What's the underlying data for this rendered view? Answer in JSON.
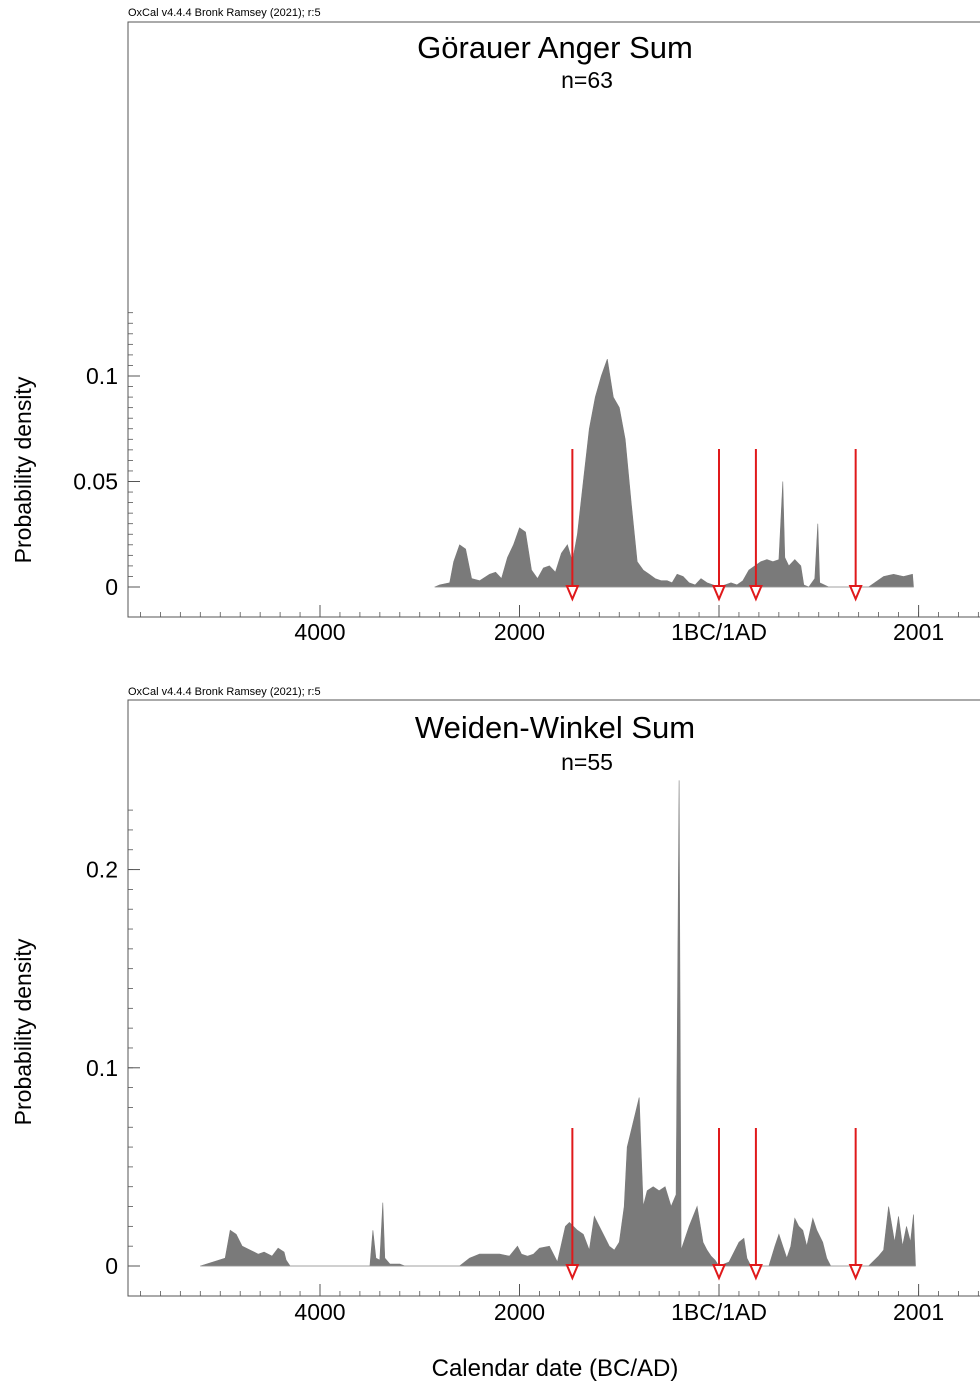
{
  "figure": {
    "xlabel": "Calendar date (BC/AD)",
    "colors": {
      "fill": "#7a7a7a",
      "marker": "#e0191b",
      "axis": "#555555",
      "text": "#000000"
    }
  },
  "chart_data": [
    {
      "type": "area",
      "credit": "OxCal v4.4.4 Bronk Ramsey (2021); r:5",
      "title": "Görauer Anger Sum",
      "subtitle": "n=63",
      "ylabel": "Probability density",
      "xlim": [
        -6000,
        2600
      ],
      "ylim": [
        0,
        0.2
      ],
      "x_ticks": [
        {
          "value": -4000,
          "label": "4000"
        },
        {
          "value": -2000,
          "label": "2000"
        },
        {
          "value": 0,
          "label": "1BC/1AD"
        },
        {
          "value": 2001,
          "label": "2001"
        }
      ],
      "y_ticks": [
        {
          "value": 0,
          "label": "0"
        },
        {
          "value": 0.05,
          "label": "0.05"
        },
        {
          "value": 0.1,
          "label": "0.1"
        }
      ],
      "markers": [
        -1470,
        0,
        370,
        1370
      ],
      "series": [
        {
          "points": [
            [
              -2850,
              0
            ],
            [
              -2800,
              0.001
            ],
            [
              -2700,
              0.002
            ],
            [
              -2660,
              0.012
            ],
            [
              -2600,
              0.02
            ],
            [
              -2540,
              0.018
            ],
            [
              -2480,
              0.004
            ],
            [
              -2400,
              0.003
            ],
            [
              -2300,
              0.006
            ],
            [
              -2240,
              0.007
            ],
            [
              -2180,
              0.004
            ],
            [
              -2120,
              0.014
            ],
            [
              -2060,
              0.02
            ],
            [
              -2000,
              0.028
            ],
            [
              -1940,
              0.026
            ],
            [
              -1880,
              0.008
            ],
            [
              -1820,
              0.004
            ],
            [
              -1760,
              0.009
            ],
            [
              -1700,
              0.01
            ],
            [
              -1640,
              0.007
            ],
            [
              -1580,
              0.016
            ],
            [
              -1520,
              0.02
            ],
            [
              -1470,
              0.012
            ],
            [
              -1420,
              0.025
            ],
            [
              -1360,
              0.05
            ],
            [
              -1300,
              0.075
            ],
            [
              -1240,
              0.09
            ],
            [
              -1180,
              0.1
            ],
            [
              -1120,
              0.108
            ],
            [
              -1060,
              0.09
            ],
            [
              -1000,
              0.085
            ],
            [
              -940,
              0.07
            ],
            [
              -880,
              0.04
            ],
            [
              -820,
              0.012
            ],
            [
              -760,
              0.008
            ],
            [
              -700,
              0.006
            ],
            [
              -640,
              0.004
            ],
            [
              -580,
              0.003
            ],
            [
              -520,
              0.003
            ],
            [
              -470,
              0.002
            ],
            [
              -420,
              0.006
            ],
            [
              -360,
              0.005
            ],
            [
              -300,
              0.002
            ],
            [
              -240,
              0.001
            ],
            [
              -180,
              0.004
            ],
            [
              -120,
              0.002
            ],
            [
              -60,
              0.001
            ],
            [
              0,
              0
            ],
            [
              60,
              0.001
            ],
            [
              120,
              0.002
            ],
            [
              180,
              0.001
            ],
            [
              240,
              0.003
            ],
            [
              300,
              0.008
            ],
            [
              360,
              0.01
            ],
            [
              420,
              0.012
            ],
            [
              480,
              0.013
            ],
            [
              540,
              0.012
            ],
            [
              600,
              0.013
            ],
            [
              640,
              0.05
            ],
            [
              660,
              0.014
            ],
            [
              700,
              0.01
            ],
            [
              760,
              0.013
            ],
            [
              820,
              0.01
            ],
            [
              850,
              0.001
            ],
            [
              900,
              0
            ],
            [
              960,
              0.004
            ],
            [
              990,
              0.03
            ],
            [
              1010,
              0.002
            ],
            [
              1100,
              0
            ],
            [
              1300,
              0
            ],
            [
              1500,
              0
            ],
            [
              1650,
              0.005
            ],
            [
              1750,
              0.006
            ],
            [
              1850,
              0.005
            ],
            [
              1940,
              0.006
            ],
            [
              1950,
              0
            ]
          ]
        }
      ]
    },
    {
      "type": "area",
      "credit": "OxCal v4.4.4 Bronk Ramsey (2021); r:5",
      "title": "Weiden-Winkel Sum",
      "subtitle": "n=55",
      "ylabel": "Probability density",
      "xlim": [
        -6000,
        2600
      ],
      "ylim": [
        0,
        0.28
      ],
      "x_ticks": [
        {
          "value": -4000,
          "label": "4000"
        },
        {
          "value": -2000,
          "label": "2000"
        },
        {
          "value": 0,
          "label": "1BC/1AD"
        },
        {
          "value": 2001,
          "label": "2001"
        }
      ],
      "y_ticks": [
        {
          "value": 0,
          "label": "0"
        },
        {
          "value": 0.1,
          "label": "0.1"
        },
        {
          "value": 0.2,
          "label": "0.2"
        }
      ],
      "markers": [
        -1470,
        0,
        370,
        1370
      ],
      "series": [
        {
          "points": [
            [
              -5200,
              0
            ],
            [
              -4950,
              0.004
            ],
            [
              -4900,
              0.018
            ],
            [
              -4840,
              0.016
            ],
            [
              -4780,
              0.01
            ],
            [
              -4700,
              0.008
            ],
            [
              -4620,
              0.006
            ],
            [
              -4560,
              0.007
            ],
            [
              -4480,
              0.005
            ],
            [
              -4420,
              0.009
            ],
            [
              -4360,
              0.007
            ],
            [
              -4340,
              0.003
            ],
            [
              -4300,
              0
            ],
            [
              -3500,
              0
            ],
            [
              -3470,
              0.018
            ],
            [
              -3440,
              0.004
            ],
            [
              -3400,
              0.003
            ],
            [
              -3370,
              0.032
            ],
            [
              -3350,
              0.004
            ],
            [
              -3300,
              0.001
            ],
            [
              -3200,
              0.001
            ],
            [
              -3150,
              0
            ],
            [
              -2600,
              0
            ],
            [
              -2500,
              0.004
            ],
            [
              -2400,
              0.006
            ],
            [
              -2300,
              0.006
            ],
            [
              -2200,
              0.006
            ],
            [
              -2100,
              0.005
            ],
            [
              -2020,
              0.01
            ],
            [
              -1980,
              0.006
            ],
            [
              -1920,
              0.005
            ],
            [
              -1860,
              0.006
            ],
            [
              -1800,
              0.009
            ],
            [
              -1700,
              0.01
            ],
            [
              -1620,
              0.002
            ],
            [
              -1540,
              0.02
            ],
            [
              -1500,
              0.022
            ],
            [
              -1420,
              0.018
            ],
            [
              -1360,
              0.016
            ],
            [
              -1300,
              0.008
            ],
            [
              -1250,
              0.025
            ],
            [
              -1200,
              0.02
            ],
            [
              -1150,
              0.015
            ],
            [
              -1100,
              0.01
            ],
            [
              -1050,
              0.008
            ],
            [
              -1000,
              0.012
            ],
            [
              -950,
              0.03
            ],
            [
              -920,
              0.06
            ],
            [
              -800,
              0.085
            ],
            [
              -760,
              0.03
            ],
            [
              -720,
              0.038
            ],
            [
              -660,
              0.04
            ],
            [
              -600,
              0.038
            ],
            [
              -540,
              0.04
            ],
            [
              -480,
              0.03
            ],
            [
              -430,
              0.036
            ],
            [
              -400,
              0.245
            ],
            [
              -380,
              0.008
            ],
            [
              -300,
              0.02
            ],
            [
              -220,
              0.03
            ],
            [
              -160,
              0.012
            ],
            [
              -120,
              0.008
            ],
            [
              -80,
              0.005
            ],
            [
              -40,
              0.003
            ],
            [
              0,
              0
            ],
            [
              50,
              0.001
            ],
            [
              100,
              0.002
            ],
            [
              150,
              0.007
            ],
            [
              200,
              0.012
            ],
            [
              250,
              0.014
            ],
            [
              280,
              0.004
            ],
            [
              320,
              0
            ],
            [
              500,
              0
            ],
            [
              560,
              0.01
            ],
            [
              600,
              0.016
            ],
            [
              640,
              0.01
            ],
            [
              680,
              0.004
            ],
            [
              720,
              0.01
            ],
            [
              760,
              0.024
            ],
            [
              800,
              0.02
            ],
            [
              840,
              0.018
            ],
            [
              880,
              0.01
            ],
            [
              940,
              0.024
            ],
            [
              980,
              0.018
            ],
            [
              1040,
              0.012
            ],
            [
              1080,
              0.004
            ],
            [
              1120,
              0
            ],
            [
              1500,
              0
            ],
            [
              1600,
              0.005
            ],
            [
              1650,
              0.008
            ],
            [
              1700,
              0.03
            ],
            [
              1760,
              0.012
            ],
            [
              1800,
              0.025
            ],
            [
              1840,
              0.01
            ],
            [
              1880,
              0.02
            ],
            [
              1920,
              0.012
            ],
            [
              1950,
              0.026
            ],
            [
              1970,
              0
            ]
          ]
        }
      ]
    }
  ]
}
